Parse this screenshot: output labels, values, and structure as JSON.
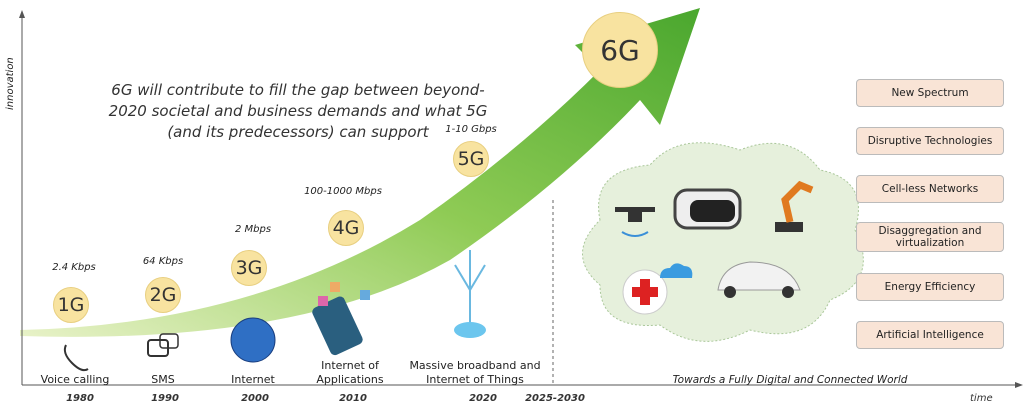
{
  "axes": {
    "y_label": "innovation",
    "x_label": "time"
  },
  "headline": [
    "6G will contribute to fill the gap between beyond-",
    "2020 societal and business demands and what 5G",
    "(and its predecessors) can support"
  ],
  "generations": [
    {
      "name": "1G",
      "speed": "2.4 Kbps",
      "service": [
        "Voice calling"
      ],
      "year": "1980",
      "icon": "phone-icon"
    },
    {
      "name": "2G",
      "speed": "64 Kbps",
      "service": [
        "SMS"
      ],
      "year": "1990",
      "icon": "chat-bubbles-icon"
    },
    {
      "name": "3G",
      "speed": "2 Mbps",
      "service": [
        "Internet"
      ],
      "year": "2000",
      "icon": "globe-icon"
    },
    {
      "name": "4G",
      "speed": "100-1000 Mbps",
      "service": [
        "Internet of",
        "Applications"
      ],
      "year": "2010",
      "icon": "smartphone-apps-icon"
    },
    {
      "name": "5G",
      "speed": "1-10 Gbps",
      "service": [
        "Massive broadband and",
        "Internet of Things"
      ],
      "year": "2020",
      "icon": "iot-tree-icon"
    },
    {
      "name": "6G",
      "year": "2025-2030",
      "service": [
        "Towards a Fully Digital and Connected World"
      ]
    }
  ],
  "enablers": [
    "New Spectrum",
    "Disruptive Technologies",
    "Cell-less Networks",
    "Disaggregation and virtualization",
    "Energy Efficiency",
    "Artificial Intelligence"
  ],
  "colors": {
    "arrow": "#7cc242",
    "generation_circle": "#f8e3a0",
    "cloud": "#e6f0dc",
    "enabler_box": "#f9e4d6"
  }
}
